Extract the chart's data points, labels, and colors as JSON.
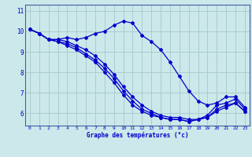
{
  "xlabel": "Graphe des températures (°c)",
  "bg_color": "#cce8ea",
  "grid_color": "#aaccd0",
  "line_color": "#0000cc",
  "xmin": -0.5,
  "xmax": 23.5,
  "ymin": 5.4,
  "ymax": 11.3,
  "yticks": [
    6,
    7,
    8,
    9,
    10,
    11
  ],
  "xticks": [
    0,
    1,
    2,
    3,
    4,
    5,
    6,
    7,
    8,
    9,
    10,
    11,
    12,
    13,
    14,
    15,
    16,
    17,
    18,
    19,
    20,
    21,
    22,
    23
  ],
  "series": [
    [
      10.1,
      9.9,
      9.6,
      9.6,
      9.7,
      9.6,
      9.7,
      9.9,
      10.0,
      10.3,
      10.5,
      10.4,
      9.8,
      9.5,
      9.1,
      8.5,
      7.8,
      7.1,
      6.6,
      6.4,
      6.5,
      6.8,
      6.8,
      6.3
    ],
    [
      10.1,
      9.9,
      9.6,
      9.6,
      9.5,
      9.3,
      9.1,
      8.8,
      8.4,
      7.9,
      7.3,
      6.8,
      6.4,
      6.1,
      5.9,
      5.8,
      5.8,
      5.7,
      5.7,
      5.9,
      6.4,
      6.5,
      6.7,
      6.2
    ],
    [
      10.1,
      9.9,
      9.6,
      9.5,
      9.4,
      9.2,
      8.9,
      8.6,
      8.2,
      7.7,
      7.1,
      6.6,
      6.2,
      6.0,
      5.8,
      5.7,
      5.7,
      5.6,
      5.7,
      5.8,
      6.2,
      6.4,
      6.5,
      6.1
    ],
    [
      10.1,
      9.9,
      9.6,
      9.5,
      9.3,
      9.1,
      8.8,
      8.5,
      8.0,
      7.5,
      6.9,
      6.4,
      6.1,
      5.9,
      5.8,
      5.7,
      5.7,
      5.6,
      5.7,
      5.8,
      6.1,
      6.3,
      6.5,
      6.1
    ]
  ]
}
